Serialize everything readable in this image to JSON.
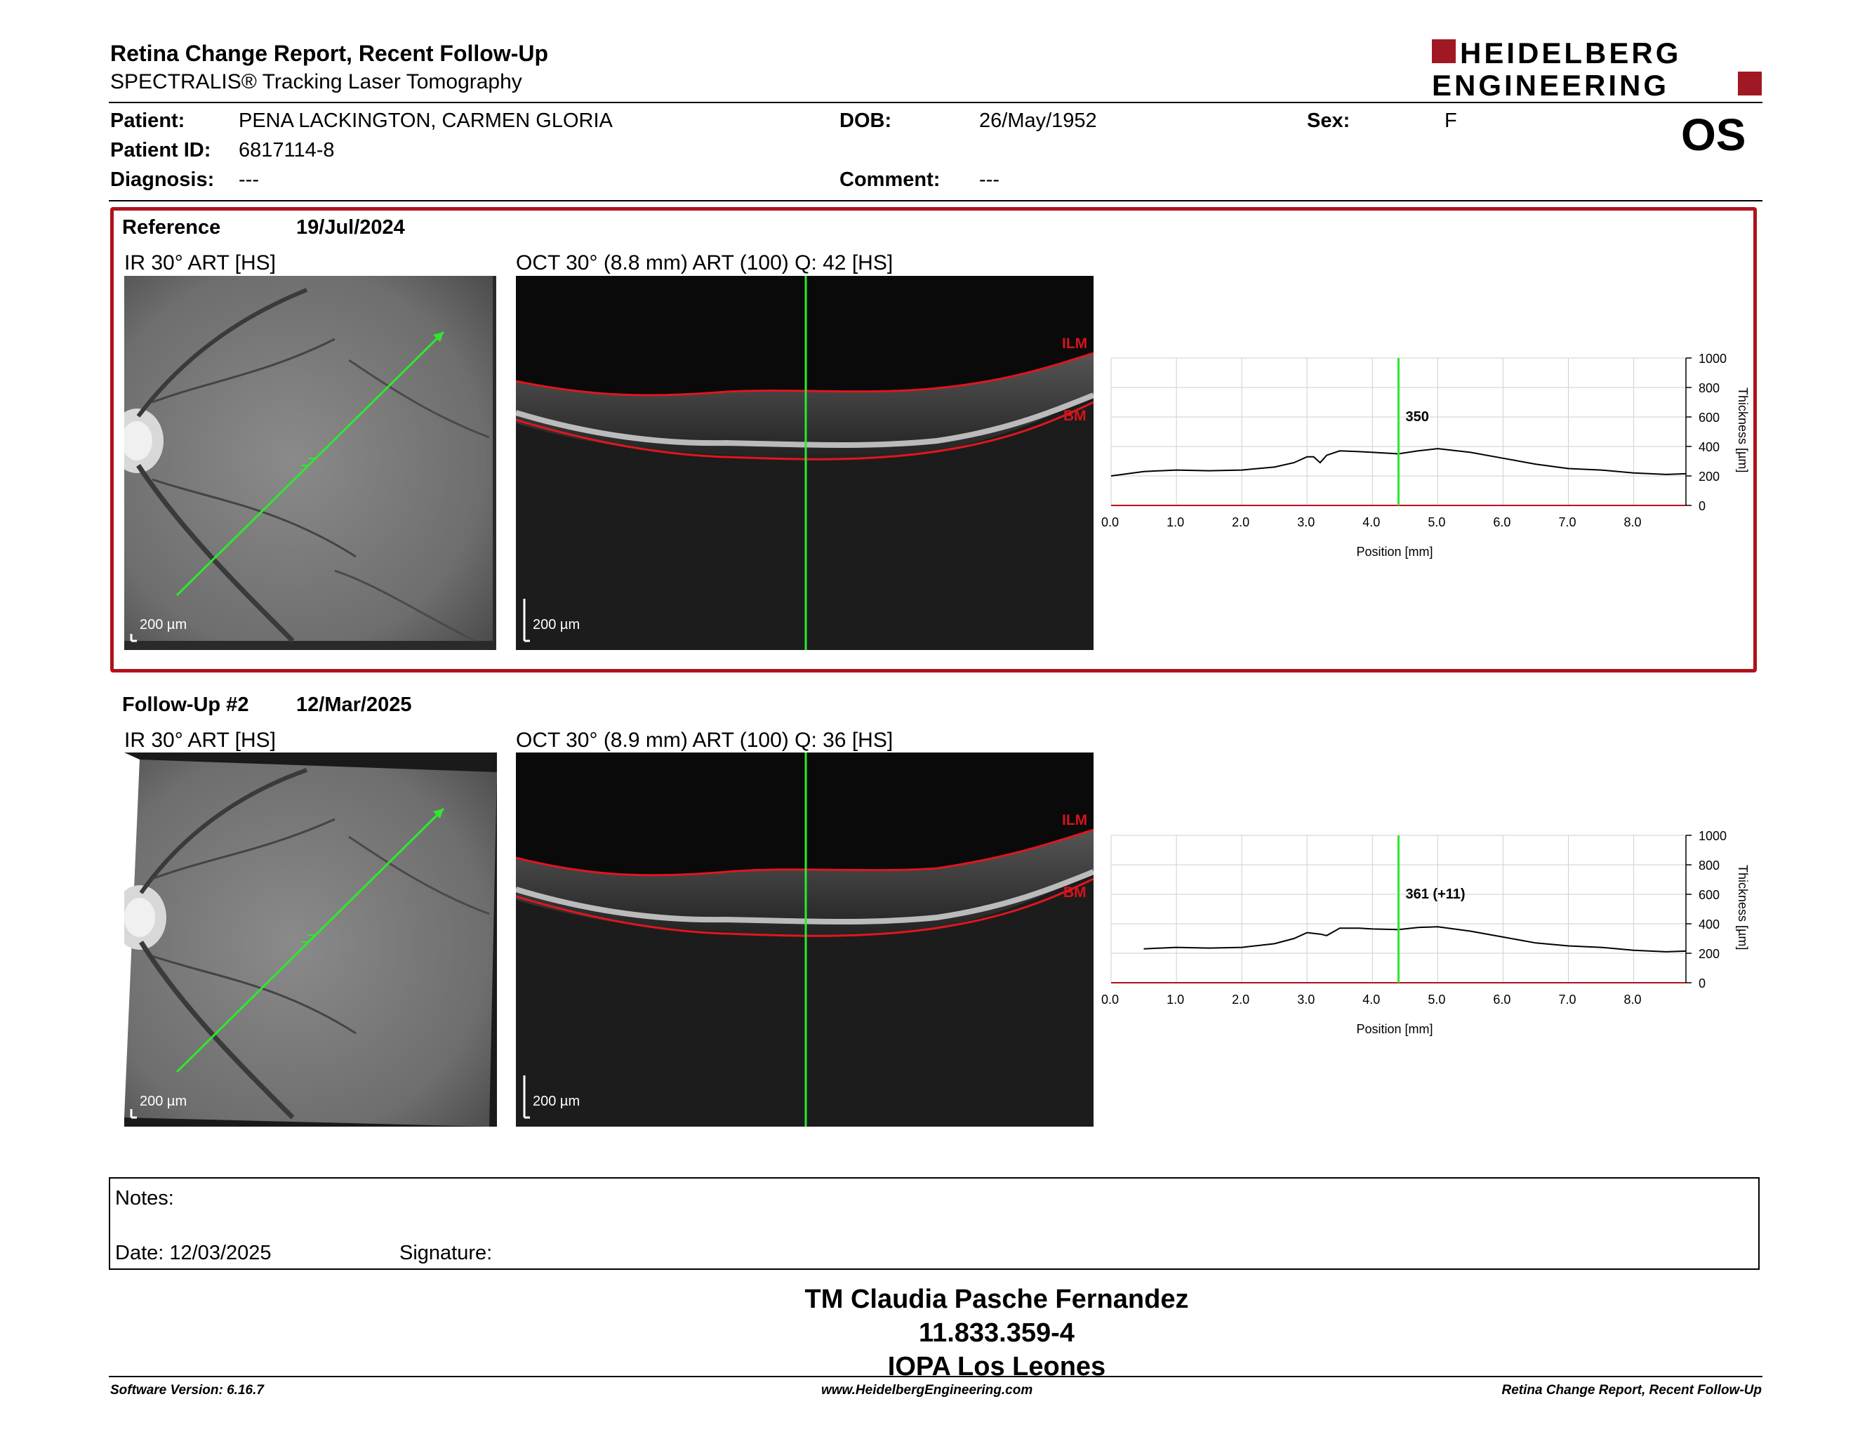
{
  "header": {
    "title": "Retina Change Report, Recent Follow-Up",
    "subtitle": "SPECTRALIS® Tracking Laser Tomography",
    "logo_line1": "HEIDELBERG",
    "logo_line2": "ENGINEERING",
    "brand_color": "#a01824"
  },
  "patient": {
    "patient_label": "Patient:",
    "patient_value": "PENA LACKINGTON, CARMEN GLORIA",
    "id_label": "Patient ID:",
    "id_value": "6817114-8",
    "diagnosis_label": "Diagnosis:",
    "diagnosis_value": "---",
    "dob_label": "DOB:",
    "dob_value": "26/May/1952",
    "comment_label": "Comment:",
    "comment_value": "---",
    "sex_label": "Sex:",
    "sex_value": "F",
    "eye": "OS"
  },
  "reference": {
    "label": "Reference",
    "date": "19/Jul/2024",
    "ir_label": "IR 30° ART [HS]",
    "oct_label": "OCT 30° (8.8 mm) ART (100) Q: 42 [HS]",
    "scale": "200 µm",
    "ilm": "ILM",
    "bm": "BM",
    "box_color": "#b0121b"
  },
  "followup": {
    "label": "Follow-Up #2",
    "date": "12/Mar/2025",
    "ir_label": "IR 30° ART [HS]",
    "oct_label": "OCT 30° (8.9 mm) ART (100) Q: 36 [HS]",
    "scale": "200 µm",
    "ilm": "ILM",
    "bm": "BM"
  },
  "chart_data": [
    {
      "type": "line",
      "xlabel": "Position [mm]",
      "ylabel": "Thickness [µm]",
      "xlim": [
        0,
        8.8
      ],
      "ylim": [
        0,
        1000
      ],
      "xticks": [
        "0.0",
        "1.0",
        "2.0",
        "3.0",
        "4.0",
        "5.0",
        "6.0",
        "7.0",
        "8.0"
      ],
      "yticks": [
        "0",
        "200",
        "400",
        "600",
        "800",
        "1000"
      ],
      "marker_x": 4.4,
      "marker_label": "350",
      "grid": true,
      "x": [
        0.0,
        0.5,
        1.0,
        1.5,
        2.0,
        2.5,
        2.8,
        3.0,
        3.1,
        3.2,
        3.3,
        3.5,
        3.8,
        4.0,
        4.4,
        4.7,
        5.0,
        5.5,
        6.0,
        6.5,
        7.0,
        7.5,
        8.0,
        8.5,
        8.8
      ],
      "y": [
        200,
        230,
        240,
        235,
        240,
        260,
        290,
        330,
        330,
        290,
        340,
        370,
        365,
        360,
        350,
        370,
        385,
        360,
        320,
        280,
        250,
        240,
        220,
        210,
        215
      ]
    },
    {
      "type": "line",
      "xlabel": "Position [mm]",
      "ylabel": "Thickness [µm]",
      "xlim": [
        0,
        8.8
      ],
      "ylim": [
        0,
        1000
      ],
      "xticks": [
        "0.0",
        "1.0",
        "2.0",
        "3.0",
        "4.0",
        "5.0",
        "6.0",
        "7.0",
        "8.0"
      ],
      "yticks": [
        "0",
        "200",
        "400",
        "600",
        "800",
        "1000"
      ],
      "marker_x": 4.4,
      "marker_label": "361 (+11)",
      "grid": true,
      "x": [
        0.5,
        1.0,
        1.5,
        2.0,
        2.5,
        2.8,
        3.0,
        3.2,
        3.3,
        3.5,
        3.8,
        4.0,
        4.4,
        4.7,
        5.0,
        5.5,
        6.0,
        6.5,
        7.0,
        7.5,
        8.0,
        8.5,
        8.8
      ],
      "y": [
        230,
        240,
        235,
        240,
        265,
        300,
        340,
        330,
        320,
        370,
        370,
        365,
        361,
        375,
        380,
        350,
        310,
        270,
        250,
        240,
        220,
        210,
        215
      ]
    }
  ],
  "notes": {
    "label": "Notes:",
    "date_label": "Date: 12/03/2025",
    "signature_label": "Signature:"
  },
  "signature_block": {
    "name": "TM Claudia Pasche Fernandez",
    "rut": "11.833.359-4",
    "clinic": "IOPA Los Leones"
  },
  "footer": {
    "software": "Software Version: 6.16.7",
    "website": "www.HeidelbergEngineering.com",
    "report": "Retina Change Report, Recent Follow-Up"
  }
}
